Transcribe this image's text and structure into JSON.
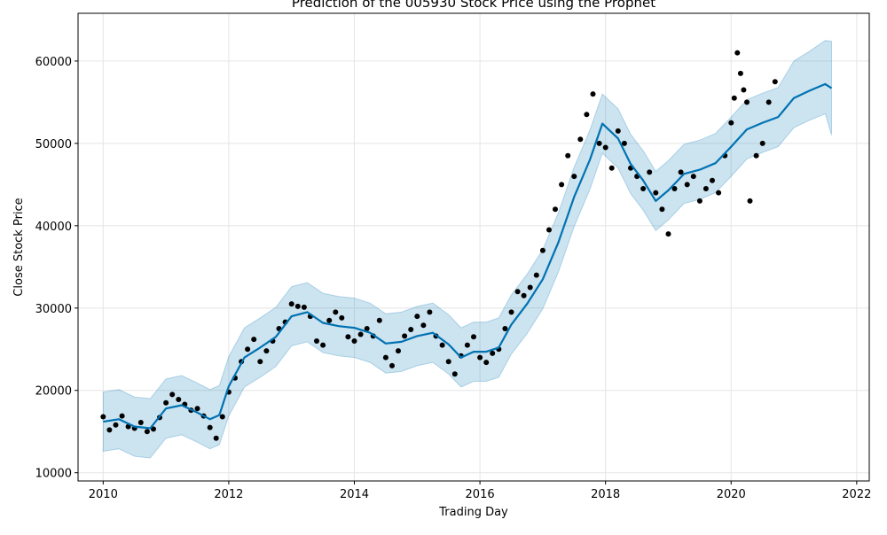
{
  "chart_data": {
    "type": "line",
    "title": "Prediction of the 005930 Stock Price using the Prophet",
    "xlabel": "Trading Day",
    "ylabel": "Close Stock Price",
    "xlim": [
      2009.6,
      2022.2
    ],
    "ylim": [
      9000,
      65800
    ],
    "xticks": [
      {
        "value": 2010,
        "label": "2010"
      },
      {
        "value": 2012,
        "label": "2012"
      },
      {
        "value": 2014,
        "label": "2014"
      },
      {
        "value": 2016,
        "label": "2016"
      },
      {
        "value": 2018,
        "label": "2018"
      },
      {
        "value": 2020,
        "label": "2020"
      },
      {
        "value": 2022,
        "label": "2022"
      }
    ],
    "yticks": [
      {
        "value": 10000,
        "label": "10000"
      },
      {
        "value": 20000,
        "label": "20000"
      },
      {
        "value": 30000,
        "label": "30000"
      },
      {
        "value": 40000,
        "label": "40000"
      },
      {
        "value": 50000,
        "label": "50000"
      },
      {
        "value": 60000,
        "label": "60000"
      }
    ],
    "grid": true,
    "legend": "none",
    "colors": {
      "forecast_line": "#0072B2",
      "uncertainty_band": "#0072B2",
      "observed_points": "#000000"
    },
    "series": [
      {
        "kind": "forecast",
        "x": [
          2010.0,
          2010.25,
          2010.5,
          2010.75,
          2011.0,
          2011.25,
          2011.5,
          2011.7,
          2011.85,
          2012.0,
          2012.25,
          2012.5,
          2012.75,
          2013.0,
          2013.25,
          2013.5,
          2013.75,
          2014.0,
          2014.25,
          2014.5,
          2014.75,
          2015.0,
          2015.25,
          2015.5,
          2015.7,
          2015.9,
          2016.1,
          2016.3,
          2016.5,
          2016.75,
          2017.0,
          2017.25,
          2017.5,
          2017.75,
          2017.95,
          2018.2,
          2018.4,
          2018.6,
          2018.8,
          2019.0,
          2019.25,
          2019.5,
          2019.75,
          2020.0,
          2020.25,
          2020.5,
          2020.75,
          2021.0,
          2021.25,
          2021.5,
          2021.6
        ],
        "yhat": [
          16200,
          16500,
          15600,
          15400,
          17800,
          18200,
          17300,
          16500,
          17000,
          20500,
          24000,
          25200,
          26500,
          29000,
          29500,
          28200,
          27800,
          27600,
          27000,
          25700,
          25900,
          26600,
          27000,
          25600,
          24000,
          24700,
          24700,
          25200,
          28000,
          30500,
          33500,
          38000,
          43500,
          48000,
          52400,
          50600,
          47500,
          45500,
          43000,
          44300,
          46300,
          46800,
          47600,
          49600,
          51700,
          52500,
          53200,
          55500,
          56400,
          57200,
          56700
        ],
        "lower": [
          12600,
          12900,
          12000,
          11800,
          14200,
          14600,
          13700,
          12900,
          13400,
          16900,
          20400,
          21600,
          22900,
          25400,
          25900,
          24600,
          24200,
          24000,
          23400,
          22100,
          22300,
          23000,
          23400,
          22000,
          20400,
          21100,
          21100,
          21600,
          24400,
          26900,
          29900,
          34400,
          39900,
          44400,
          48800,
          47000,
          43900,
          41900,
          39400,
          40700,
          42700,
          43200,
          44000,
          46000,
          48100,
          48900,
          49600,
          51900,
          52800,
          53600,
          51000
        ],
        "upper": [
          19800,
          20100,
          19200,
          19000,
          21400,
          21800,
          20900,
          20100,
          20600,
          24100,
          27600,
          28800,
          30100,
          32600,
          33100,
          31800,
          31400,
          31200,
          30600,
          29300,
          29500,
          30200,
          30600,
          29200,
          27600,
          28300,
          28300,
          28800,
          31600,
          34100,
          37100,
          41600,
          47100,
          51600,
          56000,
          54200,
          51100,
          49100,
          46600,
          47900,
          49900,
          50400,
          51200,
          53200,
          55300,
          56100,
          56800,
          60000,
          61200,
          62500,
          62400
        ]
      },
      {
        "kind": "observed",
        "x": [
          2010.0,
          2010.1,
          2010.2,
          2010.3,
          2010.4,
          2010.5,
          2010.6,
          2010.7,
          2010.8,
          2010.9,
          2011.0,
          2011.1,
          2011.2,
          2011.3,
          2011.4,
          2011.5,
          2011.6,
          2011.7,
          2011.8,
          2011.9,
          2012.0,
          2012.1,
          2012.2,
          2012.3,
          2012.4,
          2012.5,
          2012.6,
          2012.7,
          2012.8,
          2012.9,
          2013.0,
          2013.1,
          2013.2,
          2013.3,
          2013.4,
          2013.5,
          2013.6,
          2013.7,
          2013.8,
          2013.9,
          2014.0,
          2014.1,
          2014.2,
          2014.3,
          2014.4,
          2014.5,
          2014.6,
          2014.7,
          2014.8,
          2014.9,
          2015.0,
          2015.1,
          2015.2,
          2015.3,
          2015.4,
          2015.5,
          2015.6,
          2015.7,
          2015.8,
          2015.9,
          2016.0,
          2016.1,
          2016.2,
          2016.3,
          2016.4,
          2016.5,
          2016.6,
          2016.7,
          2016.8,
          2016.9,
          2017.0,
          2017.1,
          2017.2,
          2017.3,
          2017.4,
          2017.5,
          2017.6,
          2017.7,
          2017.8,
          2017.9,
          2018.0,
          2018.1,
          2018.2,
          2018.3,
          2018.4,
          2018.5,
          2018.6,
          2018.7,
          2018.8,
          2018.9,
          2019.0,
          2019.1,
          2019.2,
          2019.3,
          2019.4,
          2019.5,
          2019.6,
          2019.7,
          2019.8,
          2019.9,
          2020.0,
          2020.05,
          2020.1,
          2020.15,
          2020.2,
          2020.25,
          2020.3,
          2020.4,
          2020.5,
          2020.6,
          2020.7
        ],
        "y": [
          16800,
          15200,
          15800,
          16900,
          15600,
          15400,
          16100,
          15000,
          15300,
          16700,
          18500,
          19500,
          18900,
          18300,
          17600,
          17800,
          16900,
          15500,
          14200,
          16800,
          19800,
          21500,
          23500,
          25000,
          26200,
          23500,
          24800,
          26000,
          27500,
          28300,
          30500,
          30200,
          30100,
          29000,
          26000,
          25500,
          28500,
          29500,
          28800,
          26500,
          26000,
          26800,
          27500,
          26600,
          28500,
          24000,
          23000,
          24800,
          26600,
          27400,
          29000,
          27900,
          29500,
          26600,
          25500,
          23500,
          22000,
          24200,
          25500,
          26500,
          24000,
          23400,
          24500,
          25000,
          27500,
          29500,
          32000,
          31500,
          32500,
          34000,
          37000,
          39500,
          42000,
          45000,
          48500,
          46000,
          50500,
          53500,
          56000,
          50000,
          49500,
          47000,
          51500,
          50000,
          47000,
          46000,
          44500,
          46500,
          44000,
          42000,
          39000,
          44500,
          46500,
          45000,
          46000,
          43000,
          44500,
          45500,
          44000,
          48500,
          52500,
          55500,
          61000,
          58500,
          56500,
          55000,
          43000,
          48500,
          50000,
          55000,
          57500
        ]
      }
    ]
  }
}
